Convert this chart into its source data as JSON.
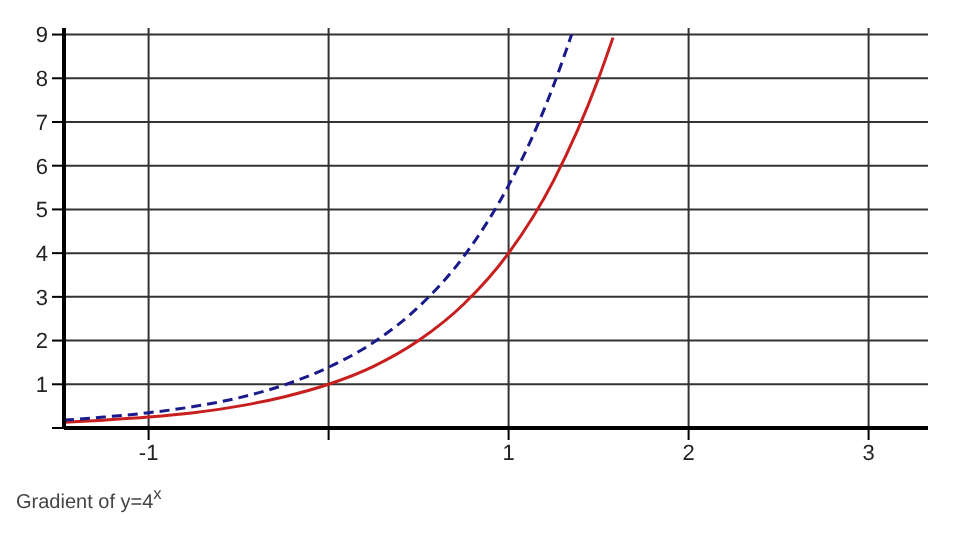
{
  "chart_data": {
    "type": "line",
    "xlim": [
      -1.47,
      3.33
    ],
    "ylim": [
      0,
      9.15
    ],
    "xticks": [
      -1,
      {
        "value": 0,
        "label": null
      },
      1,
      2,
      3
    ],
    "yticks": [
      {
        "value": 0,
        "label": null
      },
      1,
      2,
      3,
      4,
      5,
      6,
      7,
      8,
      9
    ],
    "grid": true,
    "marker": "none",
    "series": [
      {
        "color": "#c81e1e",
        "line_style": "solid",
        "x": [
          -1.47,
          -1.25,
          -1,
          -0.75,
          -0.5,
          -0.25,
          0,
          0.25,
          0.5,
          0.75,
          1,
          1.25,
          1.5,
          1.58
        ],
        "values": [
          0.13,
          0.18,
          0.25,
          0.35,
          0.5,
          0.71,
          1,
          1.41,
          2,
          2.83,
          4,
          5.66,
          8,
          8.93
        ]
      },
      {
        "color": "#1a1a8c",
        "line_style": "dashed",
        "x": [
          -1.47,
          -1.25,
          -1,
          -0.75,
          -0.5,
          -0.25,
          0,
          0.25,
          0.5,
          0.75,
          1,
          1.1,
          1.25,
          1.35
        ],
        "values": [
          0.18,
          0.25,
          0.35,
          0.49,
          0.69,
          0.98,
          1.39,
          1.96,
          2.77,
          3.92,
          5.55,
          6.37,
          7.84,
          9.0
        ]
      }
    ],
    "annotations": [
      "Gradient of y=4$^{x}$"
    ]
  }
}
